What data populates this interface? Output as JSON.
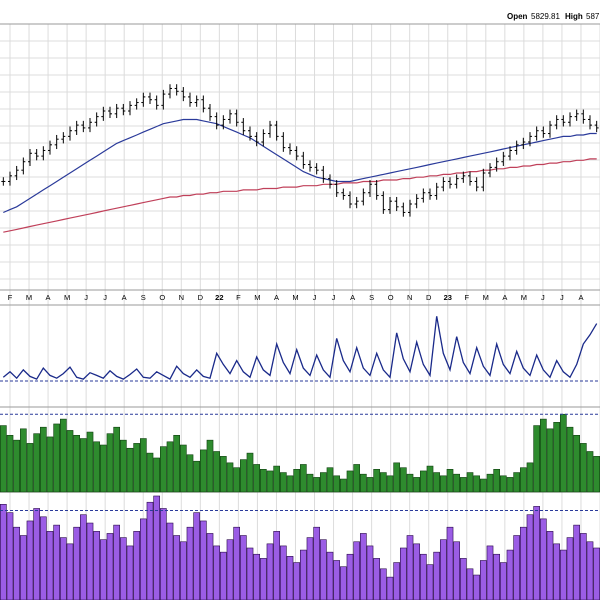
{
  "header": {
    "open_label": "Open",
    "open_value": "5829.81",
    "high_label": "High",
    "high_value": "587"
  },
  "colors": {
    "price_bar": "#000000",
    "ma_short": "#2a3a9a",
    "ma_long": "#c0405a",
    "oscillator": "#1a2a8a",
    "green_hist": "#2e8b2e",
    "green_dark": "#0f3f0f",
    "purple_hist": "#9b5de5",
    "purple_dark": "#2a0a4a",
    "reference_line": "#2a3a9a",
    "grid": "#dcdcdc"
  },
  "chart_data": {
    "type": "line",
    "x_axis_labels": [
      "F",
      "M",
      "A",
      "M",
      "J",
      "J",
      "A",
      "S",
      "O",
      "N",
      "D",
      "22",
      "F",
      "M",
      "A",
      "M",
      "J",
      "J",
      "A",
      "S",
      "O",
      "N",
      "D",
      "23",
      "F",
      "M",
      "A",
      "M",
      "J",
      "J",
      "A"
    ],
    "year_labels": [
      "22",
      "23"
    ],
    "price_close": [
      38,
      42,
      46,
      52,
      58,
      56,
      60,
      64,
      68,
      70,
      74,
      78,
      76,
      80,
      84,
      88,
      86,
      90,
      88,
      92,
      94,
      98,
      96,
      92,
      100,
      104,
      102,
      98,
      94,
      96,
      90,
      84,
      78,
      82,
      86,
      80,
      74,
      70,
      66,
      72,
      78,
      70,
      62,
      60,
      56,
      50,
      48,
      46,
      40,
      36,
      30,
      28,
      22,
      24,
      30,
      36,
      28,
      18,
      24,
      20,
      16,
      22,
      26,
      30,
      28,
      34,
      38,
      36,
      40,
      42,
      38,
      34,
      44,
      48,
      52,
      56,
      60,
      64,
      66,
      70,
      74,
      72,
      78,
      82,
      80,
      84,
      86,
      82,
      78,
      76
    ],
    "ma_short": [
      16,
      18,
      20,
      23,
      26,
      29,
      32,
      35,
      38,
      41,
      44,
      47,
      50,
      53,
      56,
      59,
      62,
      65,
      67,
      69,
      71,
      73,
      75,
      77,
      79,
      80,
      81,
      82,
      82,
      82,
      81,
      80,
      79,
      77,
      75,
      73,
      71,
      69,
      66,
      63,
      60,
      57,
      54,
      51,
      48,
      45,
      43,
      41,
      40,
      39,
      38,
      38,
      38,
      39,
      40,
      41,
      42,
      43,
      44,
      45,
      46,
      47,
      48,
      49,
      50,
      51,
      52,
      53,
      54,
      55,
      56,
      57,
      58,
      59,
      60,
      61,
      62,
      63,
      64,
      65,
      66,
      67,
      68,
      69,
      70,
      70,
      71,
      71,
      72,
      72
    ],
    "ma_long": [
      2,
      3,
      4,
      5,
      6,
      7,
      8,
      9,
      10,
      11,
      12,
      13,
      14,
      15,
      16,
      17,
      18,
      19,
      20,
      21,
      22,
      23,
      24,
      25,
      26,
      27,
      27,
      28,
      28,
      29,
      29,
      30,
      30,
      31,
      31,
      31,
      32,
      32,
      32,
      33,
      33,
      33,
      34,
      34,
      34,
      35,
      35,
      35,
      36,
      36,
      36,
      37,
      37,
      37,
      38,
      38,
      38,
      39,
      39,
      39,
      40,
      40,
      41,
      41,
      42,
      42,
      43,
      43,
      44,
      44,
      45,
      45,
      46,
      46,
      47,
      47,
      48,
      48,
      49,
      49,
      50,
      50,
      51,
      51,
      52,
      52,
      53,
      53,
      54,
      54
    ],
    "oscillator": [
      4,
      10,
      3,
      12,
      5,
      2,
      14,
      6,
      3,
      8,
      15,
      4,
      2,
      9,
      6,
      3,
      11,
      5,
      2,
      7,
      13,
      4,
      3,
      10,
      6,
      2,
      16,
      8,
      4,
      12,
      5,
      3,
      30,
      18,
      8,
      22,
      10,
      4,
      26,
      12,
      6,
      40,
      20,
      8,
      34,
      14,
      6,
      28,
      12,
      4,
      46,
      22,
      10,
      36,
      14,
      6,
      30,
      12,
      4,
      52,
      24,
      10,
      42,
      18,
      6,
      70,
      30,
      12,
      48,
      20,
      8,
      36,
      16,
      6,
      40,
      18,
      8,
      32,
      14,
      6,
      28,
      12,
      4,
      22,
      10,
      4,
      18,
      40,
      50,
      62
    ],
    "oscillator_reference": 0,
    "green_volume": [
      82,
      70,
      64,
      78,
      60,
      72,
      80,
      68,
      84,
      90,
      76,
      70,
      66,
      74,
      62,
      58,
      72,
      80,
      64,
      54,
      60,
      66,
      48,
      42,
      56,
      62,
      70,
      58,
      46,
      38,
      52,
      64,
      50,
      44,
      36,
      30,
      40,
      48,
      34,
      28,
      26,
      32,
      24,
      20,
      28,
      34,
      22,
      18,
      24,
      30,
      20,
      16,
      26,
      34,
      22,
      18,
      28,
      24,
      20,
      36,
      30,
      22,
      18,
      26,
      32,
      24,
      20,
      28,
      22,
      18,
      24,
      20,
      16,
      22,
      28,
      20,
      18,
      24,
      30,
      36,
      82,
      90,
      78,
      86,
      96,
      80,
      70,
      60,
      50,
      44
    ],
    "green_reference": 96,
    "purple_volume": [
      92,
      84,
      70,
      62,
      76,
      88,
      80,
      66,
      72,
      60,
      54,
      70,
      82,
      74,
      66,
      58,
      64,
      72,
      60,
      52,
      66,
      78,
      94,
      100,
      88,
      74,
      62,
      56,
      70,
      84,
      76,
      64,
      52,
      46,
      58,
      70,
      62,
      50,
      44,
      40,
      54,
      66,
      52,
      42,
      36,
      48,
      60,
      70,
      58,
      46,
      38,
      32,
      44,
      56,
      64,
      52,
      40,
      30,
      22,
      36,
      50,
      62,
      54,
      44,
      34,
      46,
      58,
      70,
      56,
      40,
      30,
      24,
      38,
      52,
      44,
      36,
      48,
      62,
      70,
      82,
      90,
      78,
      66,
      54,
      48,
      60,
      72,
      64,
      56,
      50
    ],
    "purple_reference": 86
  }
}
